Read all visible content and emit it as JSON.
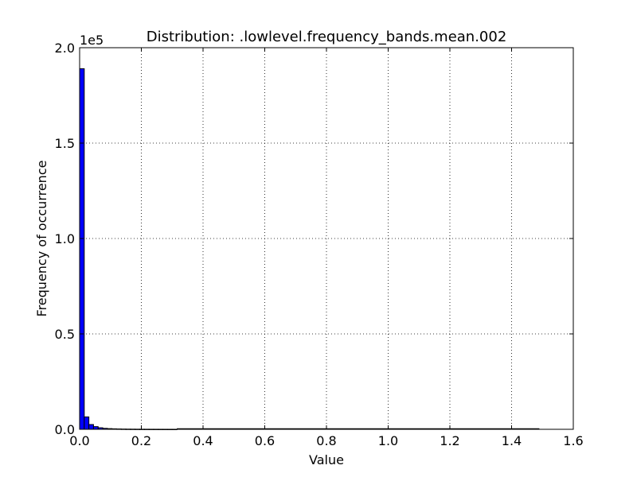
{
  "chart_data": {
    "type": "bar",
    "title": "Distribution: .lowlevel.frequency_bands.mean.002",
    "xlabel": "Value",
    "ylabel": "Frequency of occurrence",
    "y_multiplier_label": "1e5",
    "xlim": [
      0,
      1.6
    ],
    "ylim": [
      0,
      200000
    ],
    "x_ticks": [
      0.0,
      0.2,
      0.4,
      0.6,
      0.8,
      1.0,
      1.2,
      1.4,
      1.6
    ],
    "x_tick_labels": [
      "0.0",
      "0.2",
      "0.4",
      "0.6",
      "0.8",
      "1.0",
      "1.2",
      "1.4",
      "1.6"
    ],
    "y_ticks": [
      0,
      50000,
      100000,
      150000,
      200000
    ],
    "y_tick_labels": [
      "0.0",
      "0.5",
      "1.0",
      "1.5",
      "2.0"
    ],
    "grid": true,
    "bar_color": "#0000ff",
    "bin_width": 0.015,
    "bins": [
      {
        "x0": 0.0,
        "value": 189000
      },
      {
        "x0": 0.015,
        "value": 6500
      },
      {
        "x0": 0.03,
        "value": 2500
      },
      {
        "x0": 0.045,
        "value": 1400
      },
      {
        "x0": 0.06,
        "value": 800
      },
      {
        "x0": 0.075,
        "value": 500
      },
      {
        "x0": 0.09,
        "value": 350
      },
      {
        "x0": 0.105,
        "value": 250
      },
      {
        "x0": 0.12,
        "value": 180
      },
      {
        "x0": 0.135,
        "value": 130
      },
      {
        "x0": 0.15,
        "value": 100
      },
      {
        "x0": 0.165,
        "value": 80
      },
      {
        "x0": 0.18,
        "value": 60
      },
      {
        "x0": 0.195,
        "value": 50
      },
      {
        "x0": 0.21,
        "value": 40
      },
      {
        "x0": 0.225,
        "value": 30
      },
      {
        "x0": 0.24,
        "value": 25
      },
      {
        "x0": 0.255,
        "value": 20
      },
      {
        "x0": 0.27,
        "value": 15
      },
      {
        "x0": 0.285,
        "value": 12
      },
      {
        "x0": 0.3,
        "value": 10
      }
    ],
    "tail_extent": 1.49
  }
}
